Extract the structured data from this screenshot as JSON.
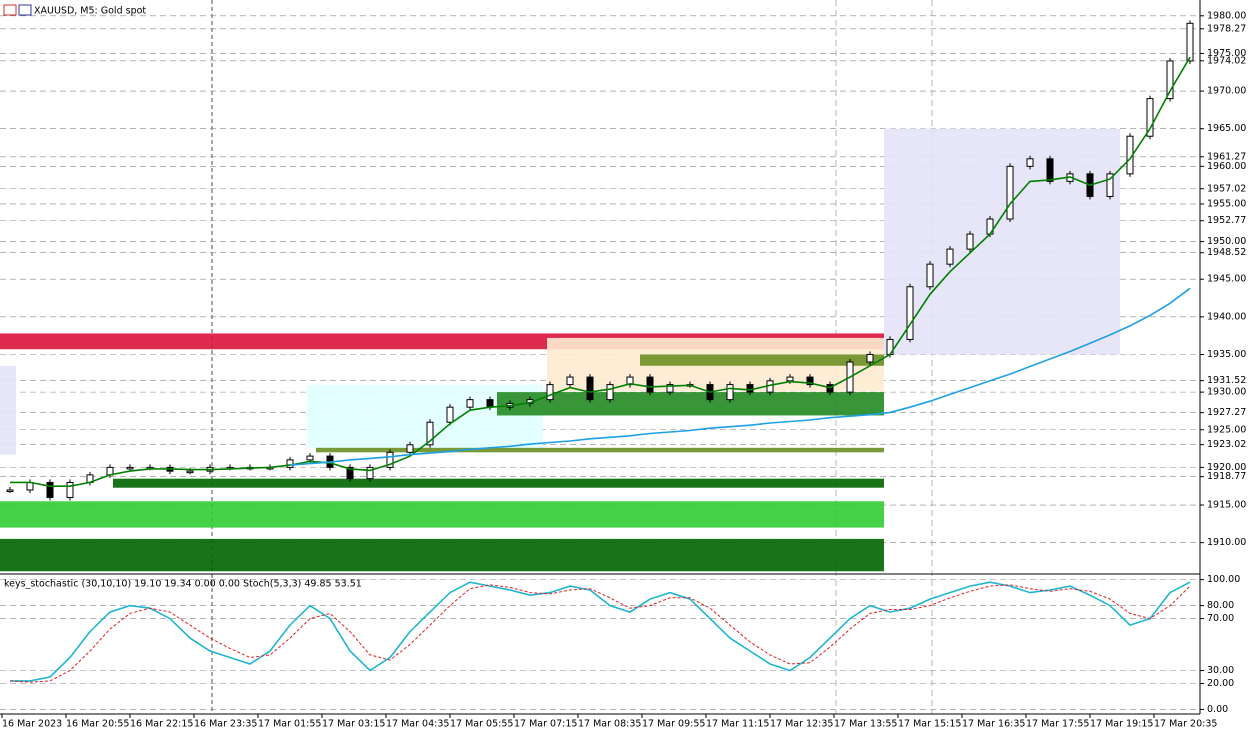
{
  "chart_data": [
    {
      "type": "line",
      "title": "XAUUSD, M5: Gold spot",
      "ylim": [
        1906.1,
        1982.1
      ],
      "yticks": [
        {
          "value": 1980,
          "label": "1980.00"
        },
        {
          "value": 1978.27,
          "label": "1978.27"
        },
        {
          "value": 1975,
          "label": "1975.00"
        },
        {
          "value": 1974.02,
          "label": "1974.02"
        },
        {
          "value": 1970,
          "label": "1970.00"
        },
        {
          "value": 1965,
          "label": "1965.00"
        },
        {
          "value": 1961.27,
          "label": "1961.27"
        },
        {
          "value": 1960,
          "label": "1960.00"
        },
        {
          "value": 1957.02,
          "label": "1957.02"
        },
        {
          "value": 1955,
          "label": "1955.00"
        },
        {
          "value": 1952.77,
          "label": "1952.77"
        },
        {
          "value": 1950,
          "label": "1950.00"
        },
        {
          "value": 1948.52,
          "label": "1948.52"
        },
        {
          "value": 1945,
          "label": "1945.00"
        },
        {
          "value": 1940,
          "label": "1940.00"
        },
        {
          "value": 1935,
          "label": "1935.00"
        },
        {
          "value": 1931.52,
          "label": "1931.52"
        },
        {
          "value": 1930,
          "label": "1930.00"
        },
        {
          "value": 1927.27,
          "label": "1927.27"
        },
        {
          "value": 1925,
          "label": "1925.00"
        },
        {
          "value": 1923.02,
          "label": "1923.02"
        },
        {
          "value": 1920,
          "label": "1920.00"
        },
        {
          "value": 1918.77,
          "label": "1918.77"
        },
        {
          "value": 1915,
          "label": "1915.00"
        },
        {
          "value": 1910,
          "label": "1910.00"
        }
      ],
      "time_labels": [
        "16 Mar 2023",
        "16 Mar 20:55",
        "16 Mar 22:15",
        "16 Mar 23:35",
        "17 Mar 01:55",
        "17 Mar 03:15",
        "17 Mar 04:35",
        "17 Mar 05:55",
        "17 Mar 07:15",
        "17 Mar 08:35",
        "17 Mar 09:55",
        "17 Mar 11:15",
        "17 Mar 12:35",
        "17 Mar 13:55",
        "17 Mar 15:15",
        "17 Mar 16:35",
        "17 Mar 17:55",
        "17 Mar 19:15",
        "17 Mar 20:35"
      ],
      "zones": [
        {
          "color": "#dc143c",
          "low": 1935.7,
          "high": 1937.8
        },
        {
          "color": "#e3e3f7",
          "low": 1935,
          "high": 1965
        },
        {
          "color": "#e3e3f7",
          "low": 1921.7,
          "high": 1933.5
        },
        {
          "color": "#e0ffff",
          "low": 1922.6,
          "high": 1931
        },
        {
          "color": "#fdebd0",
          "low": 1930.1,
          "high": 1937.2
        },
        {
          "color": "#6b8e23",
          "low": 1933.5,
          "high": 1935
        },
        {
          "color": "#228b22",
          "low": 1926.9,
          "high": 1930
        },
        {
          "color": "#6b8e23",
          "low": 1922,
          "high": 1922.6
        },
        {
          "color": "#006400",
          "low": 1917.3,
          "high": 1918.5
        },
        {
          "color": "#32cd32",
          "low": 1912,
          "high": 1915.5
        },
        {
          "color": "#006400",
          "low": 1906.2,
          "high": 1910.5
        }
      ],
      "series": [
        {
          "name": "close",
          "color": "#000000",
          "values": [
            1917,
            1918,
            1916,
            1918,
            1919,
            1920,
            1920,
            1920,
            1919.5,
            1919.5,
            1920,
            1920,
            1920,
            1920,
            1921,
            1921.5,
            1920,
            1918.5,
            1920,
            1922,
            1923,
            1926,
            1928,
            1929,
            1928,
            1928.5,
            1929,
            1931,
            1932,
            1929,
            1931,
            1932,
            1930,
            1931,
            1931,
            1929,
            1931,
            1930,
            1931.5,
            1932,
            1931,
            1930,
            1934,
            1935,
            1937,
            1944,
            1947,
            1949,
            1951,
            1953,
            1960,
            1961,
            1958,
            1959,
            1956,
            1959,
            1964,
            1969,
            1974,
            1979
          ]
        },
        {
          "name": "ma-fast",
          "color": "#008000",
          "values": [
            1918,
            1918,
            1917.5,
            1917.5,
            1918,
            1919,
            1919.5,
            1919.8,
            1919.8,
            1919.7,
            1919.7,
            1919.8,
            1919.9,
            1920,
            1920.3,
            1920.8,
            1920.6,
            1919.8,
            1919.6,
            1920.4,
            1921.5,
            1923.5,
            1925.8,
            1927.6,
            1928,
            1928.2,
            1928.6,
            1929.6,
            1930.6,
            1930,
            1930.4,
            1931.1,
            1930.7,
            1930.8,
            1930.9,
            1930,
            1930.5,
            1930.3,
            1930.9,
            1931.4,
            1931.2,
            1930.6,
            1932,
            1933.5,
            1935,
            1939,
            1943,
            1946,
            1948.5,
            1951,
            1955,
            1958,
            1958.2,
            1958.6,
            1957.5,
            1958.3,
            1961,
            1965,
            1970,
            1974.5
          ]
        },
        {
          "name": "ma-slow",
          "color": "#1ea0e6",
          "values": [
            null,
            null,
            null,
            null,
            null,
            null,
            null,
            null,
            null,
            null,
            null,
            null,
            null,
            null,
            1920.3,
            1920.5,
            1920.7,
            1921,
            1921.2,
            1921.4,
            1921.7,
            1921.9,
            1922.1,
            1922.4,
            1922.6,
            1922.8,
            1923.1,
            1923.3,
            1923.5,
            1923.8,
            1924,
            1924.2,
            1924.5,
            1924.7,
            1924.9,
            1925.2,
            1925.4,
            1925.6,
            1925.9,
            1926.1,
            1926.3,
            1926.6,
            1926.8,
            1927,
            1927.3,
            1928,
            1928.8,
            1929.7,
            1930.6,
            1931.5,
            1932.4,
            1933.4,
            1934.4,
            1935.4,
            1936.5,
            1937.6,
            1938.8,
            1940.2,
            1941.8,
            1943.8
          ]
        }
      ]
    },
    {
      "type": "line",
      "title": "keys_stochastic (30,10,10) 19.10 19.34 0.00 0.00 Stoch(5,3,3) 49.85 53.51",
      "ylim": [
        -3.5,
        102.8
      ],
      "yticks": [
        {
          "value": 100,
          "label": "100.00"
        },
        {
          "value": 80,
          "label": "80.00"
        },
        {
          "value": 70,
          "label": "70.00"
        },
        {
          "value": 30,
          "label": "30.00"
        },
        {
          "value": 20,
          "label": "20.00"
        },
        {
          "value": 0,
          "label": "0.00"
        }
      ],
      "series": [
        {
          "name": "main",
          "color": "#1eb4d2",
          "values": [
            22,
            22,
            25,
            40,
            60,
            75,
            80,
            78,
            70,
            55,
            45,
            40,
            35,
            45,
            65,
            80,
            70,
            45,
            30,
            40,
            60,
            75,
            90,
            98,
            95,
            92,
            88,
            90,
            95,
            92,
            80,
            75,
            85,
            90,
            85,
            70,
            55,
            45,
            35,
            30,
            40,
            55,
            70,
            80,
            75,
            78,
            85,
            90,
            95,
            98,
            95,
            90,
            92,
            95,
            88,
            80,
            65,
            70,
            90,
            98
          ]
        },
        {
          "name": "signal",
          "color": "#e02020",
          "values": [
            22,
            21,
            22,
            30,
            45,
            62,
            74,
            78,
            75,
            65,
            55,
            47,
            40,
            42,
            55,
            70,
            74,
            60,
            42,
            38,
            50,
            65,
            80,
            93,
            96,
            94,
            90,
            89,
            92,
            93,
            86,
            78,
            80,
            86,
            86,
            78,
            65,
            52,
            42,
            35,
            36,
            48,
            62,
            74,
            77,
            77,
            80,
            86,
            91,
            95,
            96,
            93,
            91,
            93,
            91,
            85,
            74,
            70,
            80,
            95
          ]
        }
      ]
    }
  ]
}
